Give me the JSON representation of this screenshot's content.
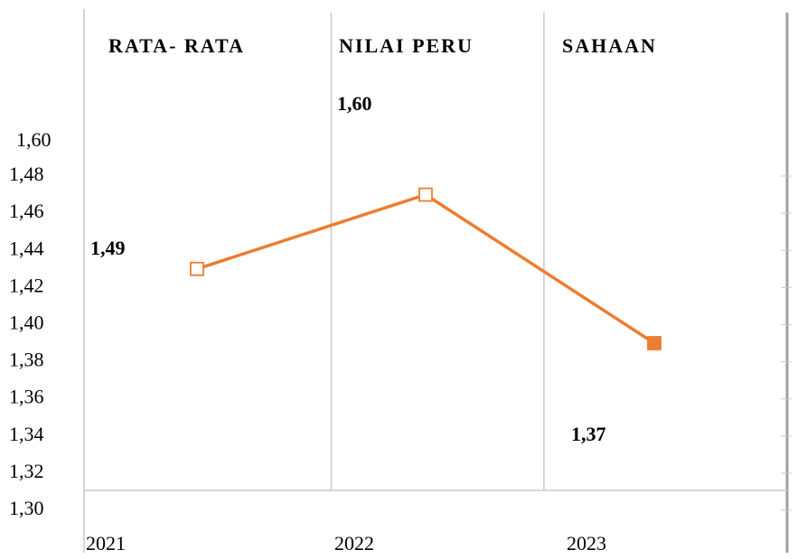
{
  "chart_data": {
    "type": "line",
    "title_parts": [
      "RATA- RATA",
      "NILAI PERU",
      "SAHAAN"
    ],
    "categories": [
      "2021",
      "2022",
      "2023"
    ],
    "series": [
      {
        "values": [
          1.43,
          1.47,
          1.39
        ],
        "color": "#ed7d31",
        "filled": [
          false,
          false,
          true
        ]
      }
    ],
    "ylim": [
      1.3,
      1.48
    ],
    "yticks": [
      {
        "value": 1.3,
        "label": "1,30"
      },
      {
        "value": 1.32,
        "label": "1,32"
      },
      {
        "value": 1.34,
        "label": "1,34"
      },
      {
        "value": 1.36,
        "label": "1,36"
      },
      {
        "value": 1.38,
        "label": "1,38"
      },
      {
        "value": 1.4,
        "label": "1,40"
      },
      {
        "value": 1.42,
        "label": "1,42"
      },
      {
        "value": 1.44,
        "label": "1,44"
      },
      {
        "value": 1.46,
        "label": "1,46"
      },
      {
        "value": 1.48,
        "label": "1,48"
      }
    ],
    "annotations": [
      "1,60",
      "1,49",
      "1,60",
      "1,37"
    ],
    "grid": true
  }
}
